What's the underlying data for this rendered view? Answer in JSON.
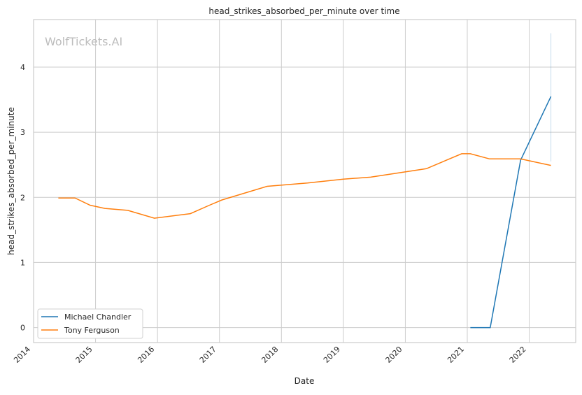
{
  "chart_data": {
    "type": "line",
    "title": "head_strikes_absorbed_per_minute over time",
    "xlabel": "Date",
    "ylabel": "head_strikes_absorbed_per_minute",
    "watermark": "WolfTickets.AI",
    "xlim": [
      2014.0,
      2022.75
    ],
    "ylim": [
      -0.23,
      4.73
    ],
    "xticks": [
      2014,
      2015,
      2016,
      2017,
      2018,
      2019,
      2020,
      2021,
      2022
    ],
    "xtick_labels": [
      "2014",
      "2015",
      "2016",
      "2017",
      "2018",
      "2019",
      "2020",
      "2021",
      "2022"
    ],
    "yticks": [
      0,
      1,
      2,
      3,
      4
    ],
    "ytick_labels": [
      "0",
      "1",
      "2",
      "3",
      "4"
    ],
    "grid": true,
    "legend_position": "lower-left",
    "series": [
      {
        "name": "Michael Chandler",
        "color": "#1f77b4",
        "x": [
          2021.05,
          2021.37,
          2021.86,
          2022.35
        ],
        "y": [
          0,
          0,
          2.57,
          3.55
        ],
        "band_at_last": [
          2.55,
          4.52
        ]
      },
      {
        "name": "Tony Ferguson",
        "color": "#ff7f0e",
        "x": [
          2014.4,
          2014.67,
          2014.91,
          2015.15,
          2015.52,
          2015.95,
          2016.53,
          2016.84,
          2017.04,
          2017.77,
          2018.42,
          2019.0,
          2019.44,
          2020.34,
          2020.91,
          2021.05,
          2021.36,
          2021.86,
          2022.35
        ],
        "y": [
          1.99,
          1.99,
          1.88,
          1.83,
          1.8,
          1.68,
          1.75,
          1.88,
          1.96,
          2.17,
          2.22,
          2.28,
          2.31,
          2.44,
          2.67,
          2.67,
          2.59,
          2.59,
          2.49
        ]
      }
    ]
  }
}
